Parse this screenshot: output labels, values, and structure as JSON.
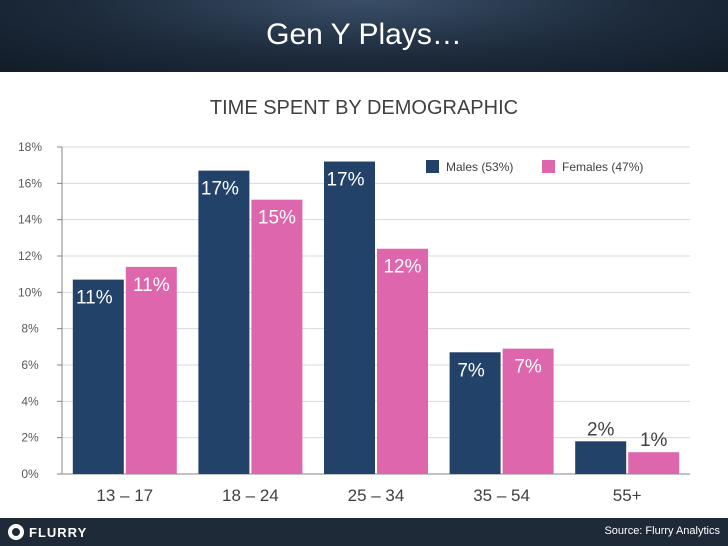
{
  "header": {
    "title": "Gen Y Plays…"
  },
  "footer": {
    "logo_text": "FLURRY",
    "source": "Source: Flurry Analytics"
  },
  "colors": {
    "males": "#22426a",
    "females": "#de66ad",
    "header_bg": "#1d2b3c"
  },
  "chart_data": {
    "type": "bar",
    "title": "TIME SPENT BY DEMOGRAPHIC",
    "categories": [
      "13 – 17",
      "18 – 24",
      "25 – 34",
      "35 – 54",
      "55+"
    ],
    "series": [
      {
        "name": "Males (53%)",
        "values": [
          10.7,
          16.7,
          17.2,
          6.7,
          1.8
        ],
        "labels": [
          "11%",
          "17%",
          "17%",
          "7%",
          "2%"
        ]
      },
      {
        "name": "Females (47%)",
        "values": [
          11.4,
          15.1,
          12.4,
          6.9,
          1.2
        ],
        "labels": [
          "11%",
          "15%",
          "12%",
          "7%",
          "1%"
        ]
      }
    ],
    "ylim": [
      0,
      18
    ],
    "yticks": [
      "0%",
      "2%",
      "4%",
      "6%",
      "8%",
      "10%",
      "12%",
      "14%",
      "16%",
      "18%"
    ],
    "grid": true,
    "legend": "top-right"
  }
}
